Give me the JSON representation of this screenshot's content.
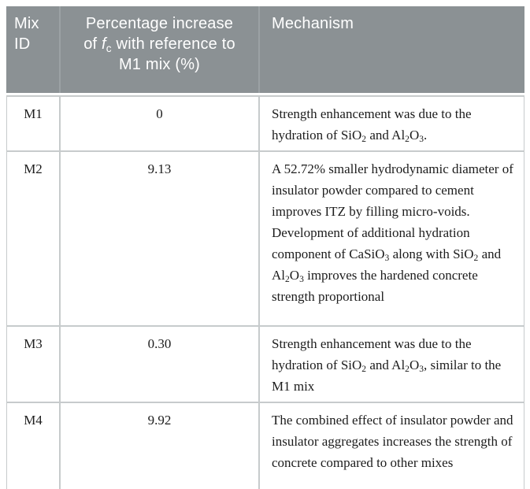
{
  "table": {
    "headers": [
      "Mix ID",
      "Percentage increase of [i]f[/i]{c} with reference to M1 mix (%)",
      "Mechanism"
    ],
    "rows": [
      {
        "id": "M1",
        "value": "0",
        "mechanism": "Strength enhancement was due to the hydration of SiO{2} and Al{2}O{3}."
      },
      {
        "id": "M2",
        "value": "9.13",
        "mechanism": "A 52.72% smaller hydrodynamic diameter of insulator powder compared to cement improves ITZ by filling micro-voids. Development of additional hydration component of CaSiO{3} along with SiO{2} and Al{2}O{3} improves the hardened concrete strength proportional"
      },
      {
        "id": "M3",
        "value": "0.30",
        "mechanism": "Strength enhancement was due to the hydration of SiO{2} and Al{2}O{3}, similar to the M1 mix"
      },
      {
        "id": "M4",
        "value": "9.92",
        "mechanism": "The combined effect of insulator powder and insulator aggregates increases the strength of concrete compared to other mixes"
      }
    ],
    "colors": {
      "header_bg": "#8b9194",
      "header_text": "#ffffff",
      "grid_line": "#c7cbcc",
      "bottom_border": "#a9afb1",
      "body_text": "#1c1c1c"
    }
  }
}
